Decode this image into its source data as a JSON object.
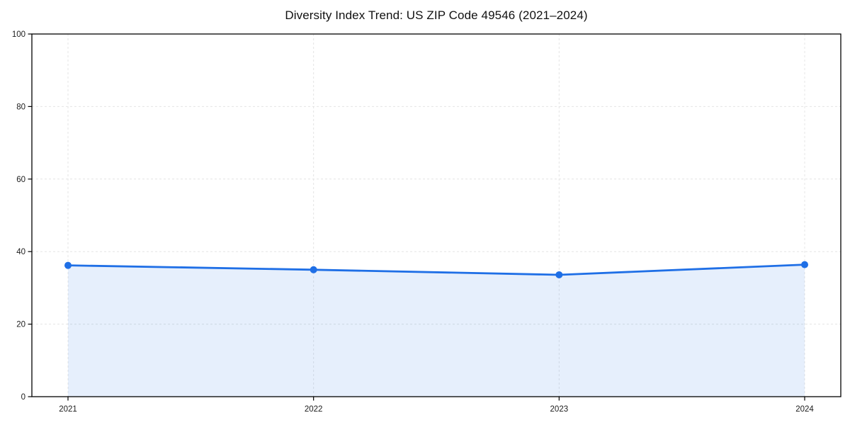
{
  "chart_data": {
    "type": "line",
    "title": "Diversity Index Trend: US ZIP Code 49546 (2021–2024)",
    "categories": [
      "2021",
      "2022",
      "2023",
      "2024"
    ],
    "series": [
      {
        "name": "Diversity Index",
        "values": [
          36.2,
          35.0,
          33.6,
          36.4
        ]
      }
    ],
    "xlabel": "",
    "ylabel": "",
    "ylim": [
      0,
      100
    ],
    "yticks": [
      0,
      20,
      40,
      60,
      80,
      100
    ],
    "grid": true,
    "grid_style": "dashed",
    "legend": "none",
    "area_fill": true,
    "marker": "circle",
    "colors": {
      "line": "#1f6fe6",
      "marker": "#1f6fe6",
      "area_fill": "rgba(31,111,230,0.11)",
      "grid": "#e4e4e4",
      "spine": "#000000",
      "tick_label": "#1c1c1c",
      "title": "#111111",
      "background": "#ffffff"
    }
  }
}
